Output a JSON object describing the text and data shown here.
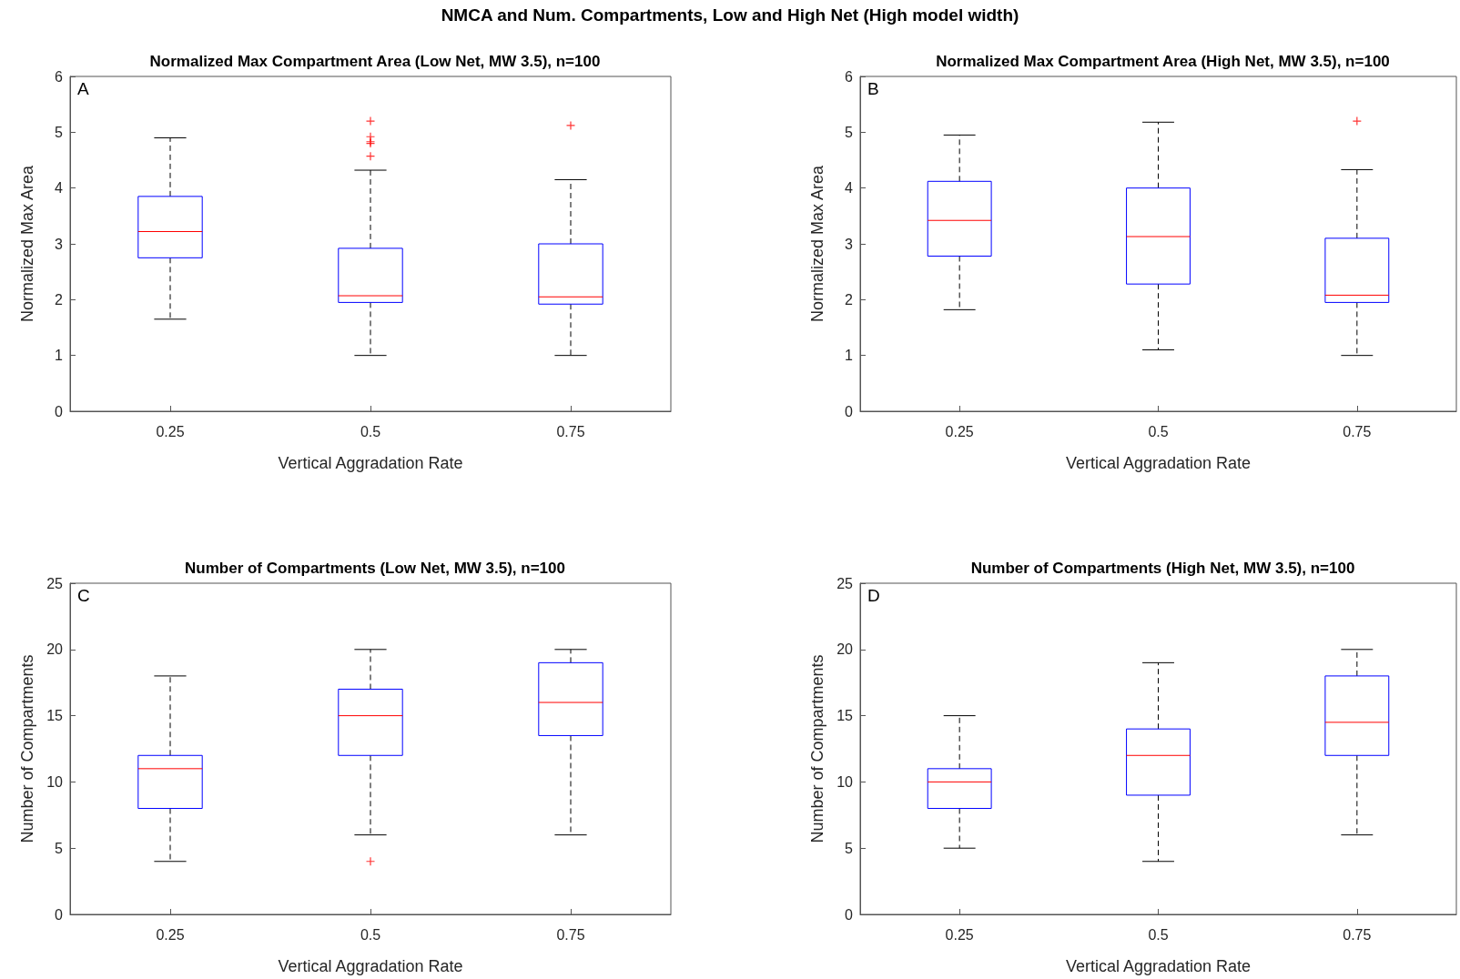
{
  "chart_data": [
    {
      "type": "box",
      "title": "Normalized Max Compartment Area (Low Net, MW 3.5), n=100",
      "xlabel": "Vertical Aggradation Rate",
      "ylabel": "Normalized Max Area",
      "categories": [
        "0.25",
        "0.5",
        "0.75"
      ],
      "ylim": [
        0,
        6
      ],
      "yticks": [
        0,
        1,
        2,
        3,
        4,
        5,
        6
      ],
      "grid": false,
      "annotations": [
        "NMCA and Num. Compartments, Low and High Net (High model width)",
        "A"
      ],
      "series": [
        {
          "color": "#0000ff",
          "boxes": [
            {
              "low": 1.65,
              "q1": 2.75,
              "median": 3.22,
              "q3": 3.85,
              "high": 4.9
            },
            {
              "low": 1.0,
              "q1": 1.95,
              "median": 2.07,
              "q3": 2.92,
              "high": 4.32,
              "outliers": [
                4.57,
                4.8,
                4.83,
                4.92,
                5.2
              ]
            },
            {
              "low": 1.0,
              "q1": 1.92,
              "median": 2.05,
              "q3": 3.0,
              "high": 4.15,
              "outliers": [
                5.12
              ]
            }
          ]
        }
      ]
    },
    {
      "type": "box",
      "title": "Normalized Max Compartment Area (High Net, MW 3.5), n=100",
      "xlabel": "Vertical Aggradation Rate",
      "ylabel": "Normalized Max Area",
      "categories": [
        "0.25",
        "0.5",
        "0.75"
      ],
      "ylim": [
        0,
        6
      ],
      "yticks": [
        0,
        1,
        2,
        3,
        4,
        5,
        6
      ],
      "grid": false,
      "annotations": [
        "B"
      ],
      "series": [
        {
          "color": "#0000ff",
          "boxes": [
            {
              "low": 1.82,
              "q1": 2.78,
              "median": 3.42,
              "q3": 4.12,
              "high": 4.95
            },
            {
              "low": 1.1,
              "q1": 2.28,
              "median": 3.13,
              "q3": 4.0,
              "high": 5.18
            },
            {
              "low": 1.0,
              "q1": 1.95,
              "median": 2.08,
              "q3": 3.1,
              "high": 4.33,
              "outliers": [
                5.2
              ]
            }
          ]
        }
      ]
    },
    {
      "type": "box",
      "title": "Number of Compartments (Low Net, MW 3.5), n=100",
      "xlabel": "Vertical Aggradation Rate",
      "ylabel": "Number of Compartments",
      "categories": [
        "0.25",
        "0.5",
        "0.75"
      ],
      "ylim": [
        0,
        25
      ],
      "yticks": [
        0,
        5,
        10,
        15,
        20,
        25
      ],
      "grid": false,
      "annotations": [
        "C"
      ],
      "series": [
        {
          "color": "#0000ff",
          "boxes": [
            {
              "low": 4,
              "q1": 8,
              "median": 11,
              "q3": 12,
              "high": 18
            },
            {
              "low": 6,
              "q1": 12,
              "median": 15,
              "q3": 17,
              "high": 20,
              "outliers": [
                4
              ]
            },
            {
              "low": 6,
              "q1": 13.5,
              "median": 16,
              "q3": 19,
              "high": 20
            }
          ]
        }
      ]
    },
    {
      "type": "box",
      "title": "Number of Compartments (High Net, MW 3.5), n=100",
      "xlabel": "Vertical Aggradation Rate",
      "ylabel": "Number of Compartments",
      "categories": [
        "0.25",
        "0.5",
        "0.75"
      ],
      "ylim": [
        0,
        25
      ],
      "yticks": [
        0,
        5,
        10,
        15,
        20,
        25
      ],
      "grid": false,
      "annotations": [
        "D"
      ],
      "series": [
        {
          "color": "#0000ff",
          "boxes": [
            {
              "low": 5,
              "q1": 8,
              "median": 10,
              "q3": 11,
              "high": 15
            },
            {
              "low": 4,
              "q1": 9,
              "median": 12,
              "q3": 14,
              "high": 19
            },
            {
              "low": 6,
              "q1": 12,
              "median": 14.5,
              "q3": 18,
              "high": 20
            }
          ]
        }
      ]
    }
  ]
}
